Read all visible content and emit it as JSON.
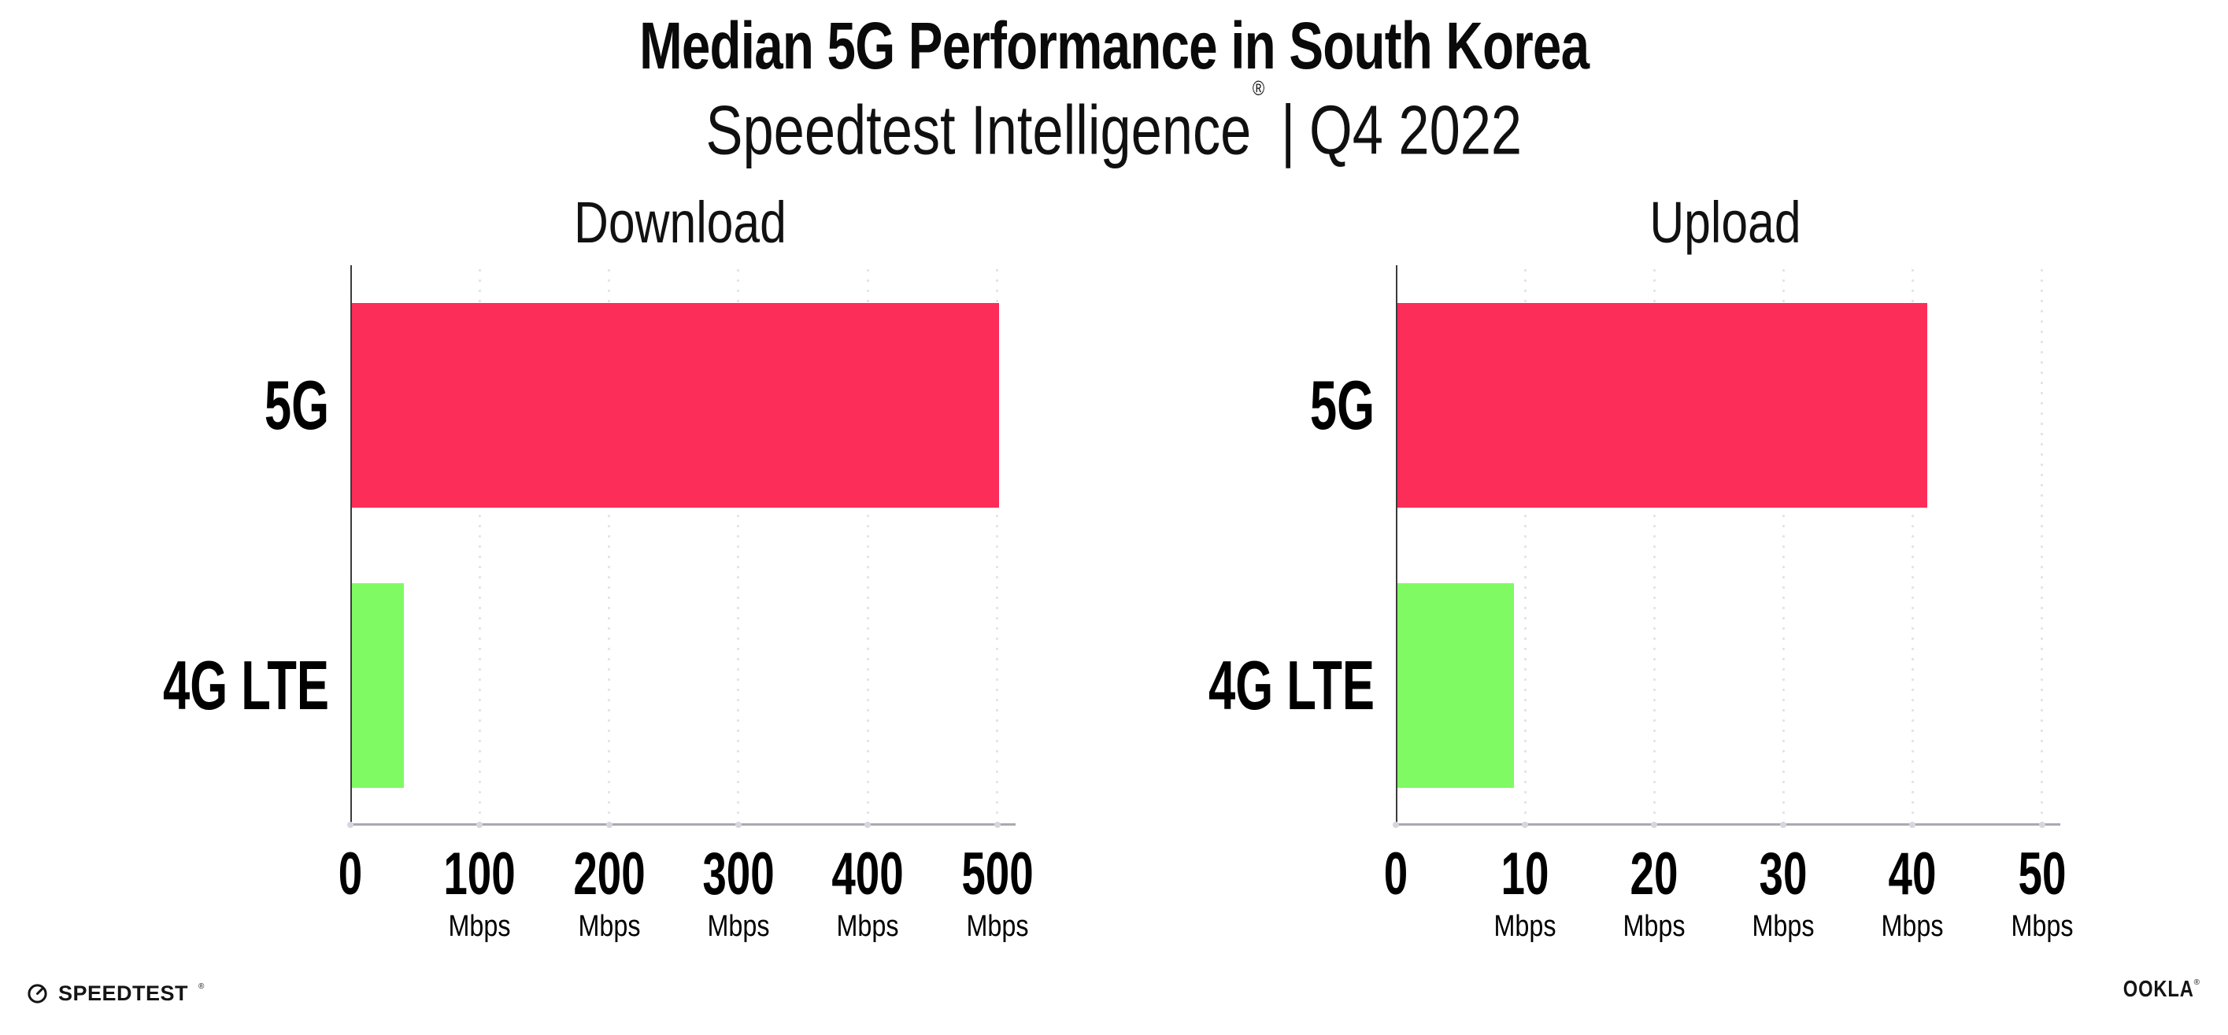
{
  "page": {
    "title": "Median 5G Performance in South Korea",
    "subtitle_brand": "Speedtest Intelligence",
    "subtitle_reg": "®",
    "subtitle_sep": "|",
    "subtitle_period": "Q4 2022"
  },
  "colors": {
    "bar_5g": "#FC2D58",
    "bar_4g": "#80FA63",
    "gridline": "#E2E2EC",
    "x_axis_line": "#A9A9B0",
    "y_axis_line": "#3B3B3B",
    "tick_dot": "#D6D6E0",
    "text": "#000000",
    "chart_title_text": "#111111"
  },
  "chart_data": [
    {
      "type": "bar",
      "orientation": "horizontal",
      "title": "Download",
      "categories": [
        "5G",
        "4G LTE"
      ],
      "values": [
        500,
        40
      ],
      "unit": "Mbps",
      "x_ticks": [
        0,
        100,
        200,
        300,
        400,
        500
      ],
      "xlim": [
        0,
        510
      ],
      "bar_colors": [
        "#FC2D58",
        "#80FA63"
      ],
      "grid": "vertical-dotted",
      "legend": "none"
    },
    {
      "type": "bar",
      "orientation": "horizontal",
      "title": "Upload",
      "categories": [
        "5G",
        "4G LTE"
      ],
      "values": [
        41,
        9
      ],
      "unit": "Mbps",
      "x_ticks": [
        0,
        10,
        20,
        30,
        40,
        50
      ],
      "xlim": [
        0,
        51
      ],
      "bar_colors": [
        "#FC2D58",
        "#80FA63"
      ],
      "grid": "vertical-dotted",
      "legend": "none"
    }
  ],
  "footer": {
    "speedtest_text": "SPEEDTEST",
    "speedtest_mark": "®",
    "speedtest_icon": "speedtest-gauge-icon",
    "ookla_text": "OOKLA",
    "ookla_mark": "®"
  }
}
